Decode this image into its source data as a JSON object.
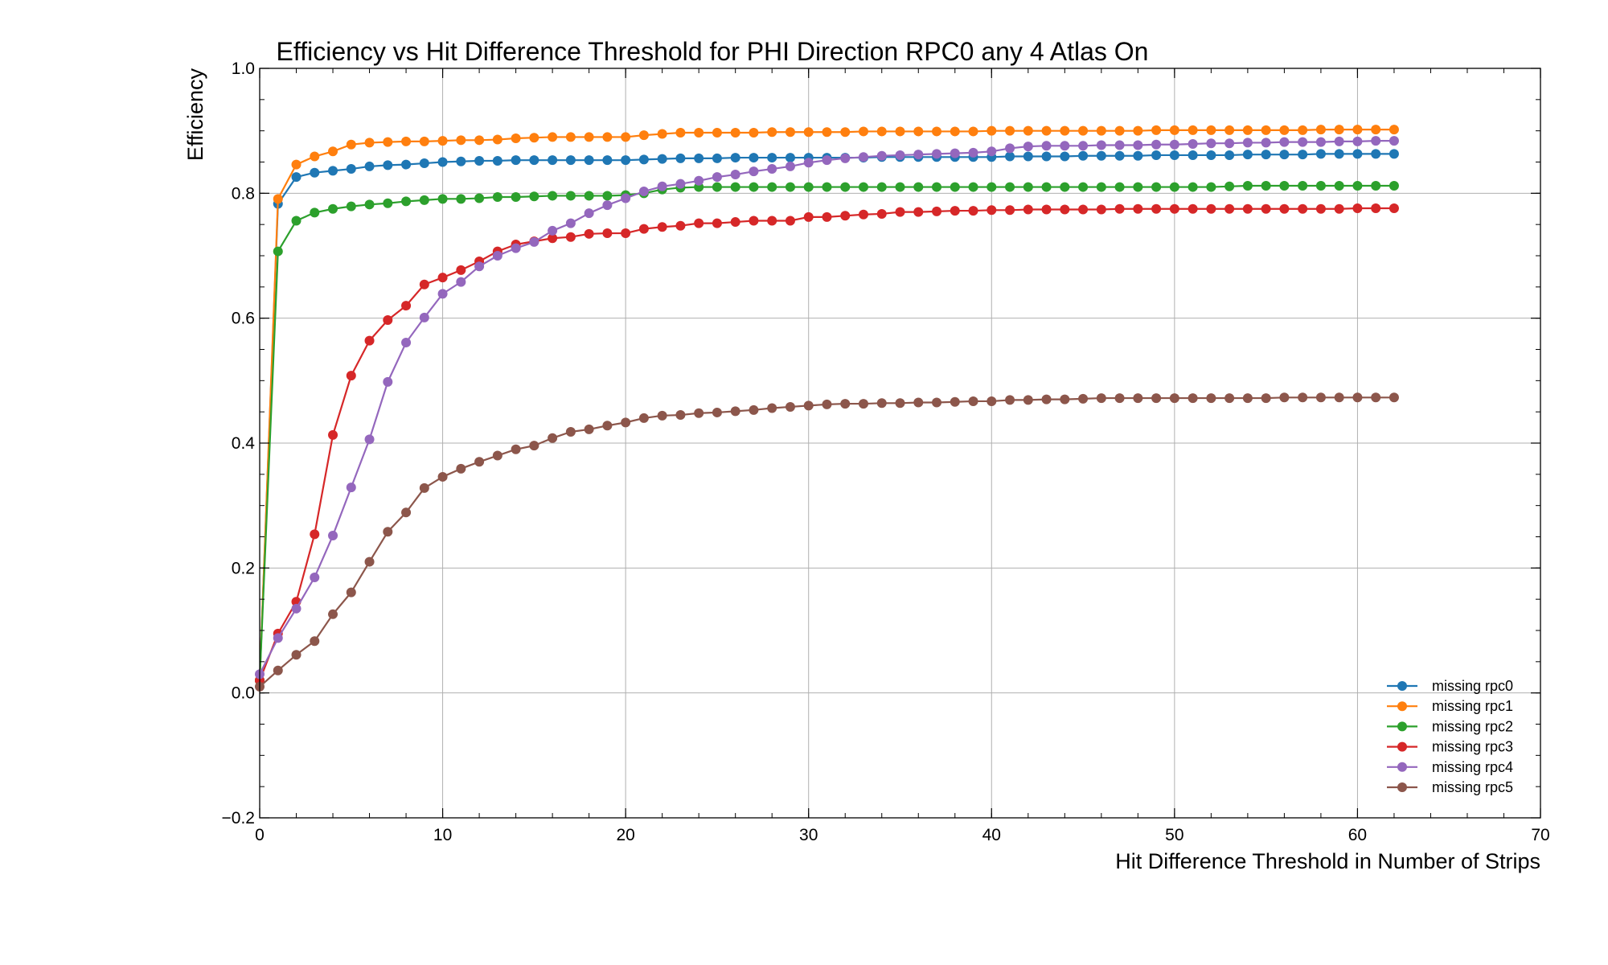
{
  "chart_data": {
    "type": "line",
    "title": "Efficiency vs Hit Difference Threshold for PHI Direction RPC0 any 4 Atlas On",
    "xlabel": "Hit Difference Threshold in Number of Strips",
    "ylabel": "Efficiency",
    "xlim": [
      0,
      70
    ],
    "ylim": [
      -0.2,
      1.0
    ],
    "xticks": [
      "0",
      "10",
      "20",
      "30",
      "40",
      "50",
      "60",
      "70"
    ],
    "yticks": [
      "−0.2",
      "0.0",
      "0.2",
      "0.4",
      "0.6",
      "0.8",
      "1.0"
    ],
    "grid": true,
    "legend_position": "lower right",
    "x": [
      0,
      1,
      2,
      3,
      4,
      5,
      6,
      7,
      8,
      9,
      10,
      11,
      12,
      13,
      14,
      15,
      16,
      17,
      18,
      19,
      20,
      21,
      22,
      23,
      24,
      25,
      26,
      27,
      28,
      29,
      30,
      31,
      32,
      33,
      34,
      35,
      36,
      37,
      38,
      39,
      40,
      41,
      42,
      43,
      44,
      45,
      46,
      47,
      48,
      49,
      50,
      51,
      52,
      53,
      54,
      55,
      56,
      57,
      58,
      59,
      60,
      61,
      62
    ],
    "series": [
      {
        "name": "missing rpc0",
        "color": "#1f77b4",
        "values": [
          0.02,
          0.783,
          0.826,
          0.833,
          0.836,
          0.839,
          0.843,
          0.845,
          0.846,
          0.848,
          0.85,
          0.851,
          0.852,
          0.852,
          0.853,
          0.853,
          0.853,
          0.853,
          0.853,
          0.853,
          0.853,
          0.854,
          0.855,
          0.856,
          0.856,
          0.856,
          0.857,
          0.857,
          0.857,
          0.857,
          0.857,
          0.857,
          0.857,
          0.857,
          0.858,
          0.858,
          0.858,
          0.858,
          0.858,
          0.858,
          0.858,
          0.859,
          0.859,
          0.859,
          0.859,
          0.86,
          0.86,
          0.86,
          0.86,
          0.861,
          0.861,
          0.861,
          0.861,
          0.861,
          0.862,
          0.862,
          0.862,
          0.862,
          0.863,
          0.863,
          0.863,
          0.863,
          0.863
        ]
      },
      {
        "name": "missing rpc1",
        "color": "#ff7f0e",
        "values": [
          0.02,
          0.791,
          0.846,
          0.859,
          0.867,
          0.878,
          0.881,
          0.882,
          0.883,
          0.883,
          0.884,
          0.885,
          0.885,
          0.886,
          0.888,
          0.889,
          0.89,
          0.89,
          0.89,
          0.89,
          0.89,
          0.893,
          0.895,
          0.897,
          0.897,
          0.897,
          0.897,
          0.897,
          0.898,
          0.898,
          0.898,
          0.898,
          0.898,
          0.899,
          0.899,
          0.899,
          0.899,
          0.899,
          0.899,
          0.899,
          0.9,
          0.9,
          0.9,
          0.9,
          0.9,
          0.9,
          0.9,
          0.9,
          0.9,
          0.901,
          0.901,
          0.901,
          0.901,
          0.901,
          0.901,
          0.901,
          0.901,
          0.901,
          0.902,
          0.902,
          0.902,
          0.902,
          0.902
        ]
      },
      {
        "name": "missing rpc2",
        "color": "#2ca02c",
        "values": [
          0.02,
          0.707,
          0.756,
          0.769,
          0.775,
          0.779,
          0.782,
          0.784,
          0.787,
          0.789,
          0.791,
          0.791,
          0.792,
          0.794,
          0.794,
          0.795,
          0.796,
          0.796,
          0.796,
          0.796,
          0.797,
          0.8,
          0.806,
          0.809,
          0.81,
          0.81,
          0.81,
          0.81,
          0.81,
          0.81,
          0.81,
          0.81,
          0.81,
          0.81,
          0.81,
          0.81,
          0.81,
          0.81,
          0.81,
          0.81,
          0.81,
          0.81,
          0.81,
          0.81,
          0.81,
          0.81,
          0.81,
          0.81,
          0.81,
          0.81,
          0.81,
          0.81,
          0.81,
          0.811,
          0.812,
          0.812,
          0.812,
          0.812,
          0.812,
          0.812,
          0.812,
          0.812,
          0.812
        ]
      },
      {
        "name": "missing rpc3",
        "color": "#d62728",
        "values": [
          0.02,
          0.095,
          0.146,
          0.254,
          0.413,
          0.508,
          0.564,
          0.597,
          0.62,
          0.654,
          0.665,
          0.677,
          0.691,
          0.707,
          0.718,
          0.723,
          0.728,
          0.73,
          0.735,
          0.736,
          0.736,
          0.743,
          0.746,
          0.748,
          0.752,
          0.752,
          0.754,
          0.756,
          0.756,
          0.756,
          0.762,
          0.762,
          0.764,
          0.766,
          0.767,
          0.77,
          0.77,
          0.771,
          0.772,
          0.772,
          0.773,
          0.773,
          0.774,
          0.774,
          0.774,
          0.774,
          0.774,
          0.775,
          0.775,
          0.775,
          0.775,
          0.775,
          0.775,
          0.775,
          0.775,
          0.775,
          0.775,
          0.775,
          0.775,
          0.775,
          0.776,
          0.776,
          0.776
        ]
      },
      {
        "name": "missing rpc4",
        "color": "#9467bd",
        "values": [
          0.03,
          0.088,
          0.135,
          0.185,
          0.252,
          0.329,
          0.406,
          0.498,
          0.561,
          0.601,
          0.639,
          0.658,
          0.683,
          0.7,
          0.712,
          0.722,
          0.74,
          0.752,
          0.768,
          0.781,
          0.792,
          0.803,
          0.811,
          0.815,
          0.82,
          0.826,
          0.83,
          0.835,
          0.839,
          0.843,
          0.849,
          0.853,
          0.856,
          0.858,
          0.86,
          0.861,
          0.862,
          0.863,
          0.864,
          0.865,
          0.867,
          0.872,
          0.875,
          0.876,
          0.876,
          0.876,
          0.877,
          0.877,
          0.877,
          0.878,
          0.878,
          0.879,
          0.88,
          0.88,
          0.881,
          0.881,
          0.882,
          0.882,
          0.882,
          0.883,
          0.883,
          0.884,
          0.884
        ]
      },
      {
        "name": "missing rpc5",
        "color": "#8c564b",
        "values": [
          0.01,
          0.036,
          0.061,
          0.083,
          0.126,
          0.161,
          0.21,
          0.258,
          0.289,
          0.328,
          0.346,
          0.359,
          0.37,
          0.38,
          0.39,
          0.396,
          0.408,
          0.418,
          0.422,
          0.428,
          0.433,
          0.44,
          0.444,
          0.445,
          0.448,
          0.449,
          0.451,
          0.453,
          0.456,
          0.458,
          0.46,
          0.462,
          0.463,
          0.463,
          0.464,
          0.464,
          0.465,
          0.465,
          0.466,
          0.467,
          0.467,
          0.469,
          0.469,
          0.47,
          0.47,
          0.471,
          0.472,
          0.472,
          0.472,
          0.472,
          0.472,
          0.472,
          0.472,
          0.472,
          0.472,
          0.472,
          0.473,
          0.473,
          0.473,
          0.473,
          0.473,
          0.473,
          0.473
        ]
      }
    ]
  }
}
